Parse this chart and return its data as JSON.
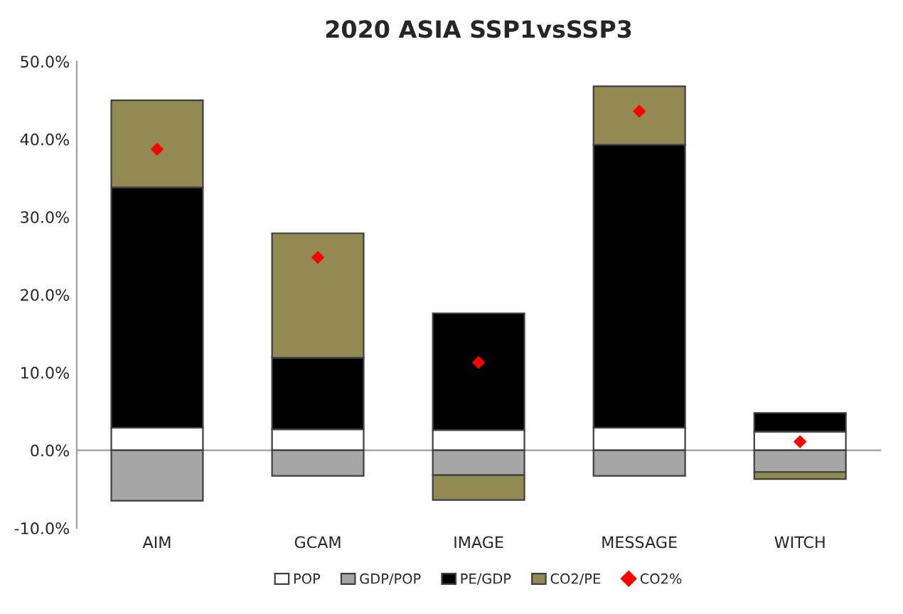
{
  "chart_data": {
    "type": "bar",
    "title": "2020 ASIA SSP1vsSSP3",
    "stacked": true,
    "categories": [
      "AIM",
      "GCAM",
      "IMAGE",
      "MESSAGE",
      "WITCH"
    ],
    "series": [
      {
        "name": "POP",
        "color": "#ffffff",
        "values": [
          2.9,
          2.7,
          2.6,
          2.9,
          2.4
        ]
      },
      {
        "name": "GDP/POP",
        "color": "#a6a6a6",
        "values": [
          -6.5,
          -3.3,
          -3.2,
          -3.3,
          -2.8
        ]
      },
      {
        "name": "PE/GDP",
        "color": "#000000",
        "values": [
          30.9,
          9.2,
          15.0,
          36.4,
          2.4
        ]
      },
      {
        "name": "CO2/PE",
        "color": "#938953",
        "values": [
          11.2,
          16.0,
          -3.2,
          7.5,
          -0.9
        ]
      },
      {
        "name": "CO2%",
        "type": "scatter",
        "color": "#ff0000",
        "marker": "diamond",
        "values": [
          38.7,
          24.8,
          11.3,
          43.6,
          1.1
        ]
      }
    ],
    "ylim": [
      -10,
      50
    ],
    "yticks": [
      {
        "value": -10,
        "label": "-10.0%"
      },
      {
        "value": 0,
        "label": "0.0%"
      },
      {
        "value": 10,
        "label": "10.0%"
      },
      {
        "value": 20,
        "label": "20.0%"
      },
      {
        "value": 30,
        "label": "30.0%"
      },
      {
        "value": 40,
        "label": "40.0%"
      },
      {
        "value": 50,
        "label": "50.0%"
      }
    ],
    "legend": "bottom"
  }
}
